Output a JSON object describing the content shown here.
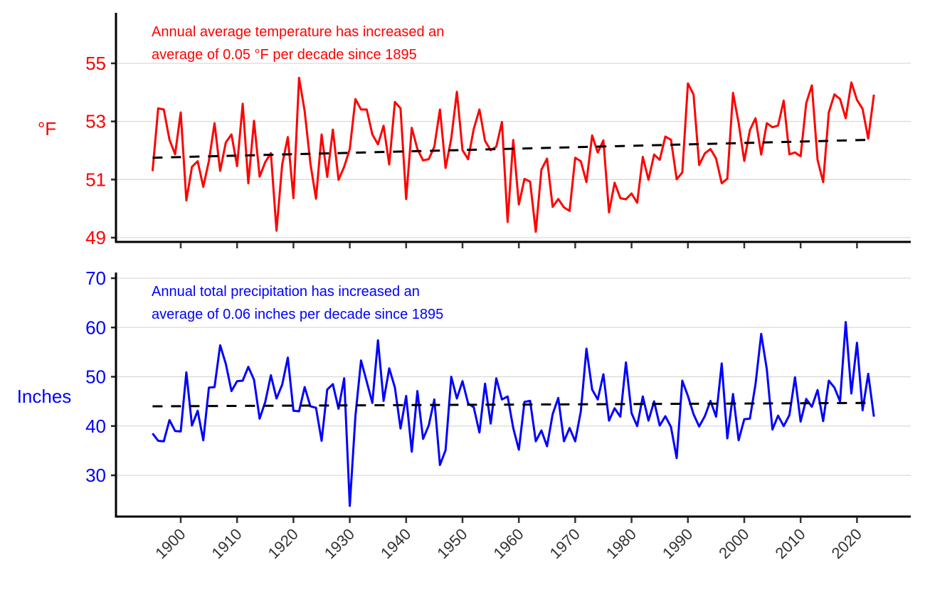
{
  "chart_data": [
    {
      "type": "line",
      "ylabel": "°F",
      "annotation": [
        "Annual average temperature has increased an",
        "average of 0.05 °F per decade since 1895"
      ],
      "color": "#ff0000",
      "trend_color": "#000000",
      "ylim": [
        49,
        56.8
      ],
      "yticks": [
        49,
        51,
        53,
        55
      ],
      "grid": true,
      "x_start": 1895,
      "values": [
        51.29,
        53.45,
        53.41,
        52.37,
        51.87,
        53.31,
        50.28,
        51.44,
        51.63,
        50.75,
        51.64,
        52.94,
        51.3,
        52.28,
        52.55,
        51.46,
        53.61,
        50.87,
        53.02,
        51.1,
        51.6,
        51.91,
        49.24,
        51.52,
        52.46,
        50.36,
        54.5,
        53.35,
        51.56,
        50.34,
        52.55,
        51.09,
        52.72,
        50.99,
        51.44,
        52.05,
        53.77,
        53.41,
        53.41,
        52.55,
        52.21,
        52.85,
        51.52,
        53.67,
        53.45,
        50.33,
        52.78,
        52.05,
        51.66,
        51.7,
        52.13,
        53.41,
        51.4,
        52.41,
        54.02,
        52.01,
        51.7,
        52.74,
        53.41,
        52.33,
        52.01,
        52.13,
        52.98,
        49.54,
        52.36,
        50.14,
        51.02,
        50.93,
        49.2,
        51.34,
        51.72,
        50.06,
        50.33,
        50.04,
        49.92,
        51.75,
        51.63,
        50.91,
        52.52,
        51.93,
        52.35,
        49.87,
        50.89,
        50.36,
        50.32,
        50.52,
        50.2,
        51.78,
        50.99,
        51.86,
        51.68,
        52.48,
        52.37,
        51.01,
        51.24,
        54.31,
        53.93,
        51.5,
        51.9,
        52.05,
        51.72,
        50.87,
        51.03,
        53.98,
        52.94,
        51.64,
        52.7,
        53.11,
        51.86,
        52.94,
        52.8,
        52.86,
        53.72,
        51.87,
        51.93,
        51.8,
        53.63,
        54.24,
        51.68,
        50.91,
        53.31,
        53.93,
        53.77,
        53.11,
        54.34,
        53.74,
        53.43,
        52.41,
        53.92
      ],
      "trend": {
        "start": 51.75,
        "end": 52.37
      }
    },
    {
      "type": "line",
      "ylabel": "Inches",
      "annotation": [
        "Annual total precipitation has increased an",
        "average of 0.06 inches per decade since 1895"
      ],
      "color": "#0000ff",
      "trend_color": "#000000",
      "ylim": [
        21.5,
        71
      ],
      "yticks": [
        30,
        40,
        50,
        60,
        70
      ],
      "grid": true,
      "x_start": 1895,
      "xticks": [
        "1900",
        "1910",
        "1920",
        "1930",
        "1940",
        "1950",
        "1960",
        "1970",
        "1980",
        "1990",
        "2000",
        "2010",
        "2020"
      ],
      "values": [
        38.5,
        37.0,
        36.9,
        41.2,
        39.0,
        38.9,
        50.9,
        40.1,
        43.1,
        37.1,
        47.8,
        47.9,
        56.4,
        52.6,
        47.1,
        49.1,
        49.2,
        52.0,
        49.4,
        41.5,
        44.9,
        50.3,
        45.6,
        48.4,
        53.9,
        43.1,
        43.0,
        47.9,
        44.0,
        43.7,
        37.0,
        47.4,
        48.5,
        43.5,
        49.7,
        23.8,
        42.0,
        53.3,
        49.0,
        44.7,
        57.4,
        45.1,
        51.7,
        47.8,
        39.5,
        46.1,
        34.8,
        47.1,
        37.4,
        40.1,
        45.4,
        32.1,
        35.1,
        50.0,
        45.6,
        49.1,
        44.6,
        43.8,
        38.7,
        48.6,
        40.5,
        49.7,
        45.4,
        46.0,
        39.6,
        35.2,
        44.9,
        45.1,
        36.9,
        39.1,
        35.9,
        42.4,
        45.7,
        36.9,
        39.6,
        36.9,
        43.0,
        55.7,
        47.4,
        45.4,
        50.5,
        41.1,
        43.6,
        41.9,
        52.9,
        42.6,
        40.0,
        46.0,
        41.1,
        45.0,
        40.1,
        42.0,
        39.8,
        33.5,
        49.2,
        46.1,
        42.4,
        39.9,
        42.0,
        45.1,
        41.9,
        52.7,
        37.5,
        46.5,
        37.1,
        41.4,
        41.5,
        48.5,
        58.7,
        51.5,
        39.3,
        42.1,
        40.0,
        42.2,
        49.9,
        40.9,
        45.5,
        43.9,
        47.3,
        41.0,
        49.2,
        47.8,
        45.0,
        61.1,
        46.6,
        56.9,
        43.2,
        50.6,
        41.9
      ],
      "trend": {
        "start": 44.0,
        "end": 44.7
      }
    }
  ]
}
